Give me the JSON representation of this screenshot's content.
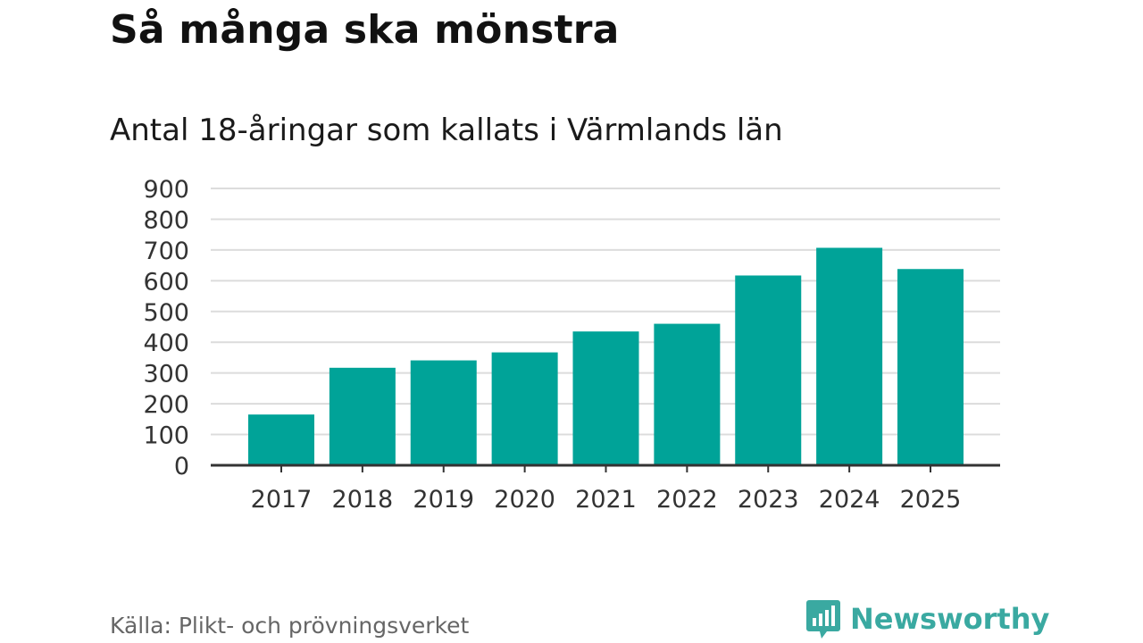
{
  "title": "Så många ska mönstra",
  "subtitle": "Antal 18-åringar som kallats i Värmlands län",
  "source": "Källa: Plikt- och prövningsverket",
  "brand": {
    "name": "Newsworthy",
    "icon": "newsworthy-logo-icon",
    "color": "#3aa9a1"
  },
  "colors": {
    "bar": "#00a398",
    "grid": "#dcdcdc",
    "axis": "#333333"
  },
  "chart_data": {
    "type": "bar",
    "categories": [
      "2017",
      "2018",
      "2019",
      "2020",
      "2021",
      "2022",
      "2023",
      "2024",
      "2025"
    ],
    "values": [
      165,
      317,
      341,
      367,
      435,
      460,
      617,
      707,
      638
    ],
    "ylim": [
      0,
      900
    ],
    "yticks": [
      0,
      100,
      200,
      300,
      400,
      500,
      600,
      700,
      800,
      900
    ],
    "grid": true,
    "legend": "none"
  }
}
